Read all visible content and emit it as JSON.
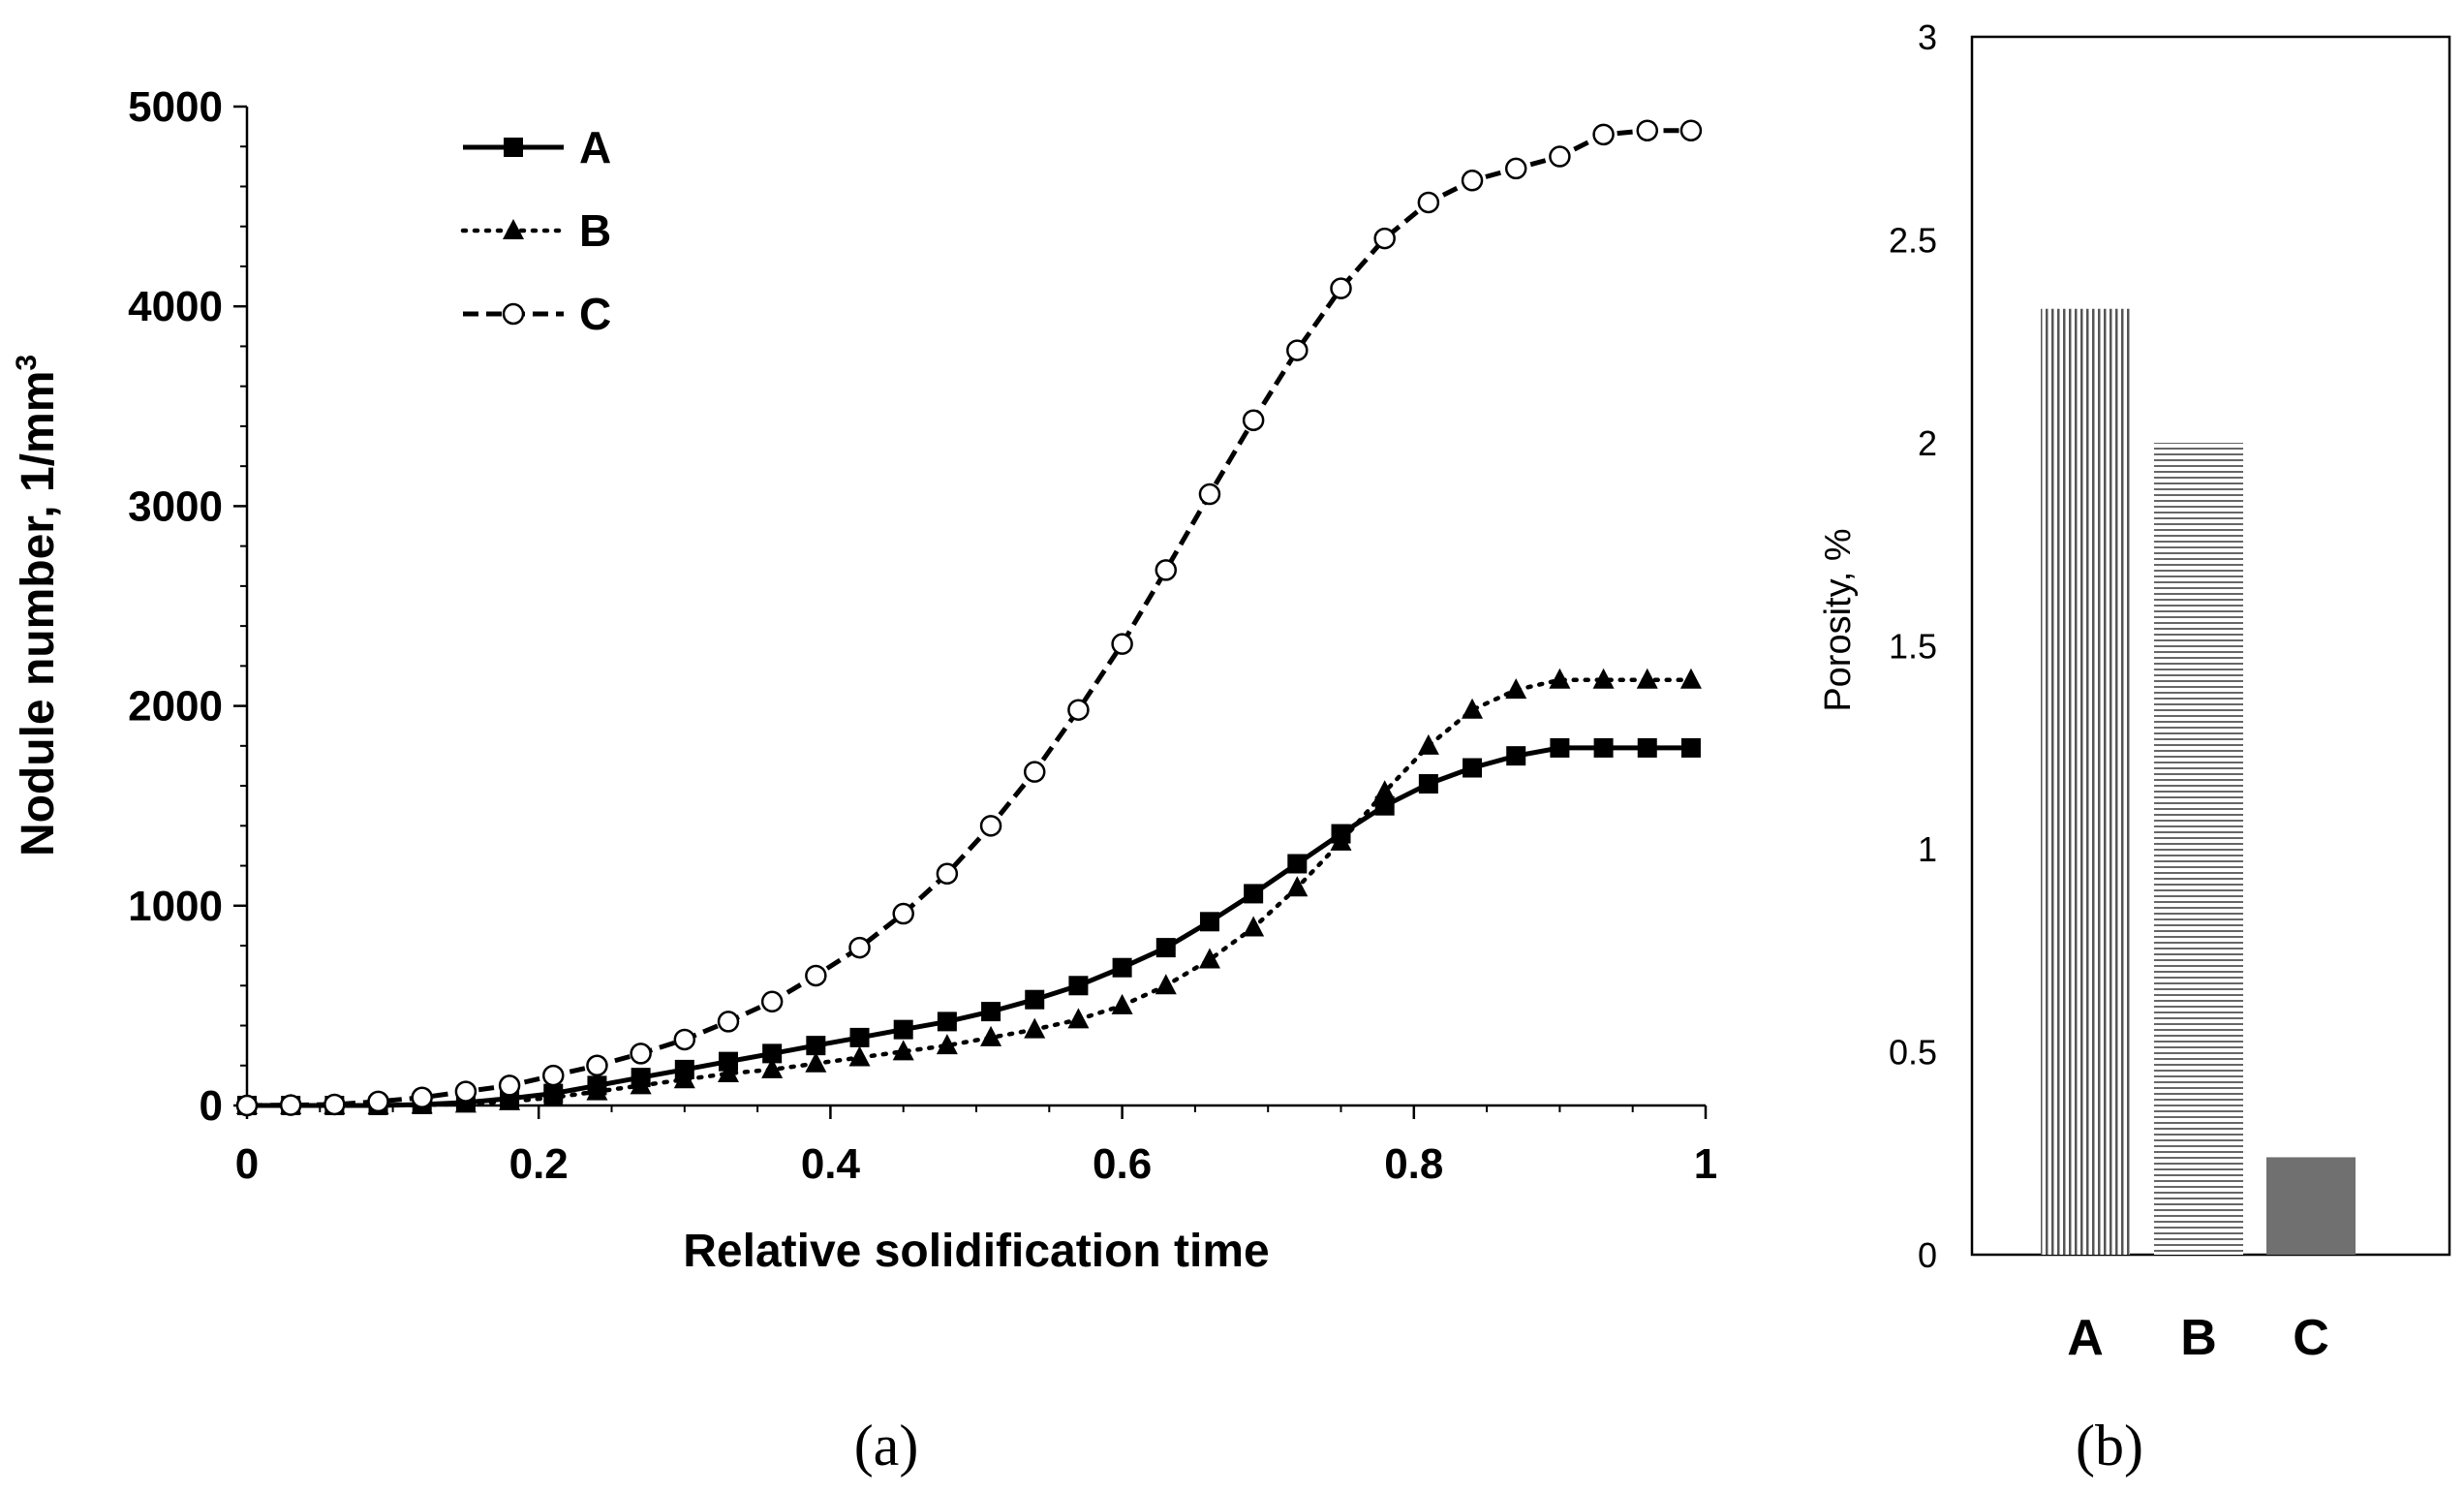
{
  "chart_data": [
    {
      "panel": "(a)",
      "type": "line",
      "title": "",
      "xlabel": "Relative solidification time",
      "ylabel": "Nodule number, 1/mm",
      "ylabel_sup": "3",
      "xlim": [
        0,
        1
      ],
      "ylim": [
        0,
        5000
      ],
      "xticks": [
        "0",
        "0.2",
        "0.4",
        "0.6",
        "0.8",
        "1"
      ],
      "yticks": [
        "0",
        "1000",
        "2000",
        "3000",
        "4000",
        "5000"
      ],
      "legend_position": "top-left",
      "x": [
        0,
        0.03,
        0.06,
        0.09,
        0.12,
        0.15,
        0.18,
        0.21,
        0.24,
        0.27,
        0.3,
        0.33,
        0.36,
        0.39,
        0.42,
        0.45,
        0.48,
        0.51,
        0.54,
        0.57,
        0.6,
        0.63,
        0.66,
        0.69,
        0.72,
        0.75,
        0.78,
        0.81,
        0.84,
        0.87,
        0.9,
        0.93,
        0.96,
        0.99
      ],
      "series": [
        {
          "name": "A",
          "style": "solid-square",
          "values": [
            0,
            0,
            0,
            0,
            5,
            15,
            35,
            60,
            100,
            140,
            180,
            220,
            260,
            300,
            340,
            380,
            420,
            470,
            530,
            600,
            690,
            790,
            920,
            1060,
            1210,
            1360,
            1500,
            1610,
            1690,
            1750,
            1790,
            1790,
            1790,
            1790
          ]
        },
        {
          "name": "B",
          "style": "dotted-triangle",
          "values": [
            0,
            0,
            0,
            0,
            3,
            8,
            20,
            40,
            70,
            100,
            130,
            160,
            180,
            210,
            240,
            270,
            300,
            340,
            380,
            430,
            500,
            600,
            730,
            890,
            1090,
            1320,
            1570,
            1800,
            1980,
            2080,
            2130,
            2130,
            2130,
            2130
          ]
        },
        {
          "name": "C",
          "style": "dashed-circle",
          "values": [
            0,
            2,
            5,
            20,
            40,
            70,
            100,
            150,
            200,
            260,
            330,
            420,
            520,
            650,
            790,
            960,
            1160,
            1400,
            1670,
            1980,
            2310,
            2680,
            3060,
            3430,
            3780,
            4090,
            4340,
            4520,
            4630,
            4690,
            4750,
            4860,
            4880,
            4880
          ]
        }
      ]
    },
    {
      "panel": "(b)",
      "type": "bar",
      "title": "",
      "xlabel": "",
      "ylabel": "Porosity, %",
      "ylim": [
        0,
        3
      ],
      "yticks": [
        "0",
        "0.5",
        "1",
        "1.5",
        "2",
        "2.5",
        "3"
      ],
      "categories": [
        "A",
        "B",
        "C"
      ],
      "values": [
        2.33,
        2.0,
        0.24
      ],
      "fills": [
        "vertical-hatch",
        "horizontal-hatch",
        "solid-grey"
      ],
      "colors": [
        "#555555",
        "#666666",
        "#707070"
      ]
    }
  ],
  "captions": {
    "a": "(a)",
    "b": "(b)"
  }
}
